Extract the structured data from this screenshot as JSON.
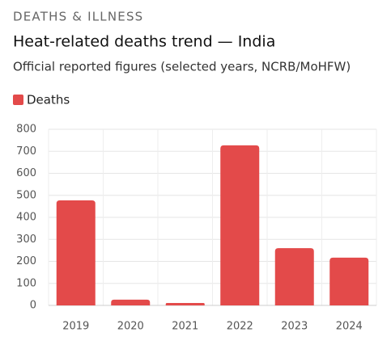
{
  "chart_data": {
    "type": "bar",
    "section_label": "DEATHS & ILLNESS",
    "title": "Heat-related deaths trend — India",
    "subtitle": "Official reported figures (selected years, NCRB/MoHFW)",
    "categories": [
      "2019",
      "2020",
      "2021",
      "2022",
      "2023",
      "2024"
    ],
    "series": [
      {
        "name": "Deaths",
        "color": "#e34a4a",
        "values": [
          477,
          26,
          11,
          727,
          260,
          217
        ]
      }
    ],
    "ylim": [
      0,
      800
    ],
    "yticks": [
      0,
      100,
      200,
      300,
      400,
      500,
      600,
      700,
      800
    ],
    "grid": true,
    "legend": "top-left"
  }
}
